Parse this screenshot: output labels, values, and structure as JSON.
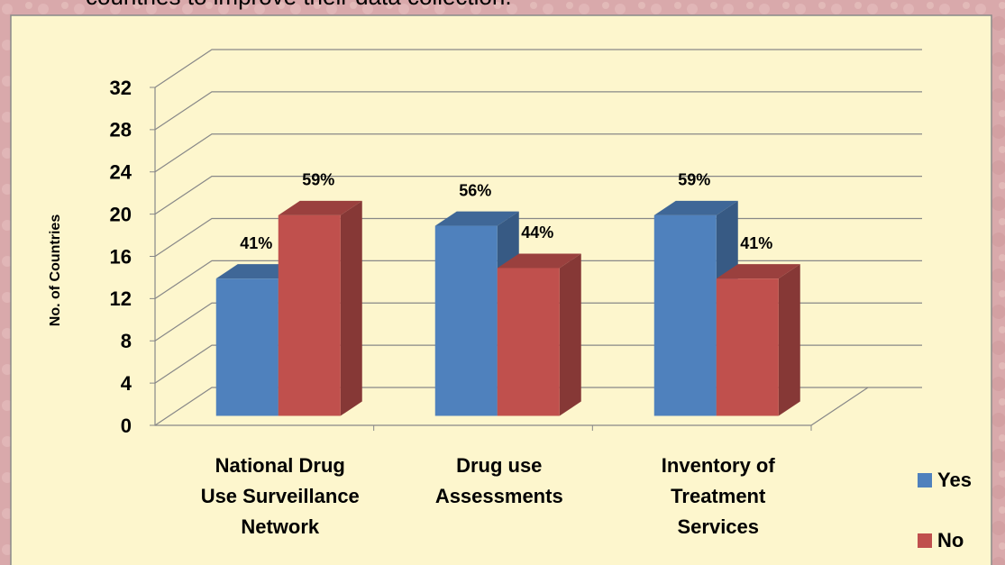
{
  "caption": "countries to improve their data collection.",
  "chart_data": {
    "type": "bar",
    "y_label": "No. of Countries",
    "categories": [
      [
        "National Drug",
        "Use Surveillance",
        "Network"
      ],
      [
        "Drug use",
        "Assessments"
      ],
      [
        "Inventory of",
        "Treatment",
        "Services"
      ]
    ],
    "series": [
      {
        "name": "Yes",
        "color": "#4f81bd",
        "values": [
          13,
          18,
          19
        ],
        "percent_labels": [
          "41%",
          "56%",
          "59%"
        ]
      },
      {
        "name": "No",
        "color": "#c0504d",
        "values": [
          19,
          14,
          13
        ],
        "percent_labels": [
          "59%",
          "44%",
          "41%"
        ]
      }
    ],
    "ylim": [
      0,
      32
    ],
    "yticks": [
      0,
      4,
      8,
      12,
      16,
      20,
      24,
      28,
      32
    ],
    "grid": true,
    "legend": "right"
  }
}
